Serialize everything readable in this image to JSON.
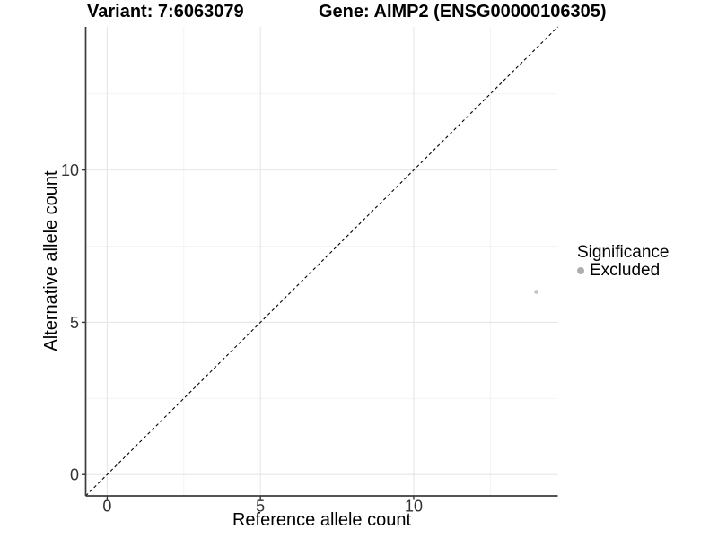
{
  "chart_data": {
    "type": "scatter",
    "title_left": "Variant: 7:6063079",
    "title_right": "Gene: AIMP2 (ENSG00000106305)",
    "xlabel": "Reference allele count",
    "ylabel": "Alternative allele count",
    "xlim": [
      -0.7,
      14.7
    ],
    "ylim": [
      -0.7,
      14.7
    ],
    "x_ticks": [
      0,
      5,
      10
    ],
    "y_ticks": [
      0,
      5,
      10
    ],
    "x_minor_ticks": [
      2.5,
      7.5,
      12.5
    ],
    "y_minor_ticks": [
      2.5,
      7.5,
      12.5
    ],
    "grid": "major+minor",
    "abline": {
      "slope": 1,
      "intercept": 0,
      "style": "dashed",
      "color": "#000000"
    },
    "series": [
      {
        "name": "Excluded",
        "color": "#c2c2c2",
        "point_radius": 2.3,
        "points": [
          {
            "x": 14,
            "y": 6
          }
        ]
      }
    ],
    "legend": {
      "position": "right",
      "title": "Significance",
      "items": [
        {
          "label": "Excluded",
          "color": "#aeaeae"
        }
      ]
    },
    "style": {
      "axis_line_color": "#3c3c3c",
      "tick_color": "#383838",
      "tick_label_color": "#333333",
      "grid_major_color": "#e6e6e6",
      "grid_minor_color": "#f2f2f2",
      "background": "#ffffff"
    }
  }
}
